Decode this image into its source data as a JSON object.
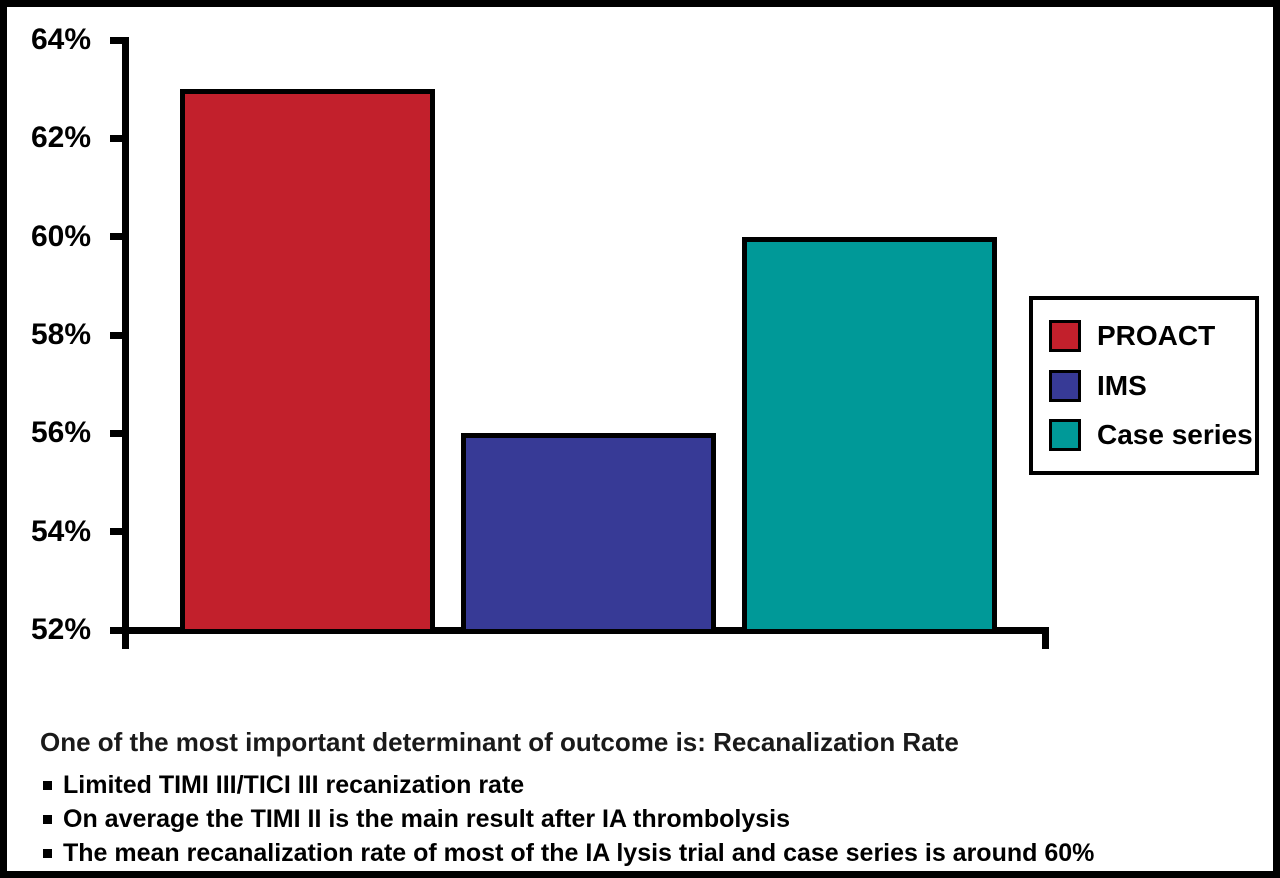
{
  "chart_data": {
    "type": "bar",
    "categories": [
      "PROACT",
      "IMS",
      "Case series"
    ],
    "values": [
      63,
      56,
      60
    ],
    "value_unit": "%",
    "colors": [
      "#C2202C",
      "#373A96",
      "#009998"
    ],
    "title": "",
    "xlabel": "",
    "ylabel": "",
    "ylim": [
      52,
      64
    ],
    "ytick_step": 2,
    "ytick_labels": [
      "52%",
      "54%",
      "56%",
      "58%",
      "60%",
      "62%",
      "64%"
    ],
    "grid": false,
    "legend": {
      "position": "right",
      "entries": [
        "PROACT",
        "IMS",
        "Case series"
      ]
    }
  },
  "notes": {
    "heading": "One of the most important determinant of outcome is: Recanalization Rate",
    "bullets": [
      "Limited TIMI III/TICI III recanization rate",
      "On average the TIMI II is the main result after IA thrombolysis",
      "The mean recanalization rate of most of the IA lysis trial and case series is around 60%"
    ]
  }
}
